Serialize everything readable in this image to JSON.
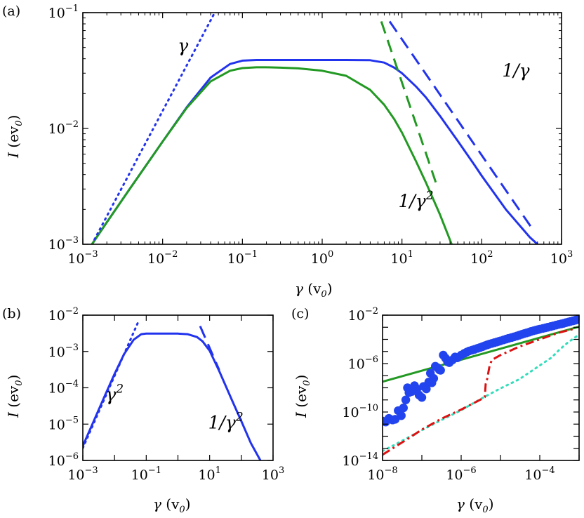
{
  "chart_data": [
    {
      "panel": "(a)",
      "type": "line",
      "xscale": "log",
      "yscale": "log",
      "xlim": [
        0.001,
        1000
      ],
      "ylim": [
        0.001,
        0.1
      ],
      "xticks": [
        {
          "base": "10",
          "exp": "−3"
        },
        {
          "base": "10",
          "exp": "−2"
        },
        {
          "base": "10",
          "exp": "−1"
        },
        {
          "base": "10",
          "exp": "0"
        },
        {
          "base": "10",
          "exp": "1"
        },
        {
          "base": "10",
          "exp": "2"
        },
        {
          "base": "10",
          "exp": "3"
        }
      ],
      "yticks": [
        {
          "base": "10",
          "exp": "−3"
        },
        {
          "base": "10",
          "exp": "−2"
        },
        {
          "base": "10",
          "exp": "−1"
        }
      ],
      "xlabel": {
        "sym": "γ",
        "rest": " (v",
        "sub": "0",
        ")": ")"
      },
      "ylabel": {
        "sym": "I",
        "rest": " (ev",
        "sub": "0"
      },
      "annotations": [
        {
          "text": "γ",
          "sup": "",
          "x": 0.0155,
          "y": 0.046
        },
        {
          "text": "1/γ",
          "sup": "",
          "x": 180,
          "y": 0.028
        },
        {
          "text": "1/γ",
          "sup": "2",
          "x": 9,
          "y": 0.0021
        }
      ],
      "series": [
        {
          "name": "blue solid",
          "color": "#2233ee",
          "dash": "",
          "x": [
            0.0013,
            0.002,
            0.004,
            0.01,
            0.02,
            0.04,
            0.07,
            0.1,
            0.15,
            0.2,
            0.3,
            0.5,
            1,
            2,
            4,
            6,
            8,
            10,
            15,
            20,
            30,
            50,
            80,
            100,
            200,
            400,
            500
          ],
          "y": [
            0.001,
            0.00155,
            0.0031,
            0.0077,
            0.0152,
            0.0275,
            0.036,
            0.0385,
            0.039,
            0.039,
            0.039,
            0.039,
            0.039,
            0.039,
            0.0388,
            0.037,
            0.0335,
            0.03,
            0.023,
            0.0185,
            0.0128,
            0.0078,
            0.0049,
            0.0039,
            0.002,
            0.00115,
            0.001
          ]
        },
        {
          "name": "green solid",
          "color": "#229922",
          "dash": "",
          "x": [
            0.0013,
            0.002,
            0.004,
            0.01,
            0.02,
            0.04,
            0.07,
            0.1,
            0.15,
            0.2,
            0.3,
            0.5,
            1,
            2,
            4,
            6,
            8,
            10,
            15,
            20,
            30,
            42
          ],
          "y": [
            0.001,
            0.00155,
            0.0031,
            0.0077,
            0.015,
            0.0255,
            0.0315,
            0.0332,
            0.0337,
            0.0337,
            0.0335,
            0.033,
            0.0315,
            0.0285,
            0.0215,
            0.016,
            0.012,
            0.0092,
            0.0052,
            0.0034,
            0.0018,
            0.001
          ]
        },
        {
          "name": "blue dotted γ",
          "color": "#2233ee",
          "dash": "dotted",
          "x": [
            0.0014,
            0.045
          ],
          "y": [
            0.0011,
            0.1
          ]
        },
        {
          "name": "blue dashed 1/γ",
          "color": "#2233ee",
          "dash": "dashed",
          "x": [
            7,
            450
          ],
          "y": [
            0.084,
            0.0013
          ]
        },
        {
          "name": "green dashed 1/γ²",
          "color": "#229922",
          "dash": "dashed",
          "x": [
            5.5,
            27
          ],
          "y": [
            0.084,
            0.0033
          ]
        }
      ]
    },
    {
      "panel": "(b)",
      "type": "line",
      "xscale": "log",
      "yscale": "log",
      "xlim": [
        0.001,
        1000
      ],
      "ylim": [
        1e-06,
        0.01
      ],
      "xticks": [
        {
          "base": "10",
          "exp": "−3"
        },
        {
          "base": "10",
          "exp": "−1"
        },
        {
          "base": "10",
          "exp": "1"
        },
        {
          "base": "10",
          "exp": "3"
        }
      ],
      "xtick_values": [
        0.001,
        0.1,
        10,
        1000
      ],
      "yticks": [
        {
          "base": "10",
          "exp": "−6"
        },
        {
          "base": "10",
          "exp": "−5"
        },
        {
          "base": "10",
          "exp": "−4"
        },
        {
          "base": "10",
          "exp": "−3"
        },
        {
          "base": "10",
          "exp": "−2"
        }
      ],
      "xlabel": {
        "sym": "γ",
        "rest": " (v",
        "sub": "0"
      },
      "ylabel": {
        "sym": "I",
        "rest": " (ev",
        "sub": "0"
      },
      "annotations": [
        {
          "text": "γ",
          "sup": "2",
          "x": 0.0052,
          "y": 4.5e-05
        },
        {
          "text": "1/γ",
          "sup": "2",
          "x": 9,
          "y": 7.5e-06
        }
      ],
      "series": [
        {
          "name": "blue solid",
          "color": "#2233ee",
          "dash": "",
          "x": [
            0.001,
            0.002,
            0.005,
            0.01,
            0.02,
            0.04,
            0.07,
            0.1,
            0.2,
            0.5,
            1,
            2,
            4,
            6,
            10,
            20,
            50,
            100,
            200,
            400
          ],
          "y": [
            2.5e-06,
            1e-05,
            6.2e-05,
            0.00024,
            0.00085,
            0.0021,
            0.003,
            0.0031,
            0.0031,
            0.0031,
            0.0031,
            0.003,
            0.0025,
            0.0019,
            0.00105,
            0.00029,
            4.7e-05,
            1.21e-05,
            3e-06,
            1e-06
          ]
        },
        {
          "name": "blue dotted γ²",
          "color": "#2233ee",
          "dash": "dotted",
          "x": [
            0.001,
            0.06
          ],
          "y": [
            2.2e-06,
            0.0075
          ]
        },
        {
          "name": "blue dashed 1/γ²",
          "color": "#2233ee",
          "dash": "dashed",
          "x": [
            5,
            20
          ],
          "y": [
            0.005,
            0.00031
          ]
        }
      ]
    },
    {
      "panel": "(c)",
      "type": "line+scatter",
      "xscale": "log",
      "yscale": "log",
      "xlim": [
        1e-08,
        0.001
      ],
      "ylim": [
        1e-14,
        0.01
      ],
      "xticks": [
        {
          "base": "10",
          "exp": "−8"
        },
        {
          "base": "10",
          "exp": "−6"
        },
        {
          "base": "10",
          "exp": "−4"
        }
      ],
      "xtick_values": [
        1e-08,
        1e-06,
        0.0001
      ],
      "yticks": [
        {
          "base": "10",
          "exp": "−14"
        },
        {
          "base": "10",
          "exp": "−10"
        },
        {
          "base": "10",
          "exp": "−6"
        },
        {
          "base": "10",
          "exp": "−2"
        }
      ],
      "ytick_values": [
        1e-14,
        1e-10,
        1e-06,
        0.01
      ],
      "xlabel": {
        "sym": "γ",
        "rest": " (v",
        "sub": "0"
      },
      "ylabel": {
        "sym": "I",
        "rest": " (ev",
        "sub": "0"
      },
      "annotations": [],
      "series": [
        {
          "name": "green solid",
          "color": "#229922",
          "dash": "",
          "x": [
            1e-08,
            0.001
          ],
          "y": [
            3.2e-08,
            0.0011
          ]
        },
        {
          "name": "cyan dotted",
          "color": "#33ddbb",
          "dash": "dotted",
          "x": [
            1e-08,
            2.5e-08,
            8e-08,
            3e-07,
            1e-06,
            3e-06,
            1e-05,
            3e-05,
            0.0001,
            0.0002,
            0.0003,
            0.0005,
            0.001
          ],
          "y": [
            6e-14,
            2.8e-13,
            2.2e-12,
            2e-11,
            1.4e-10,
            1.1e-09,
            9e-09,
            5e-08,
            7e-07,
            3.2e-06,
            1.2e-05,
            5e-05,
            0.00025
          ]
        },
        {
          "name": "red dash-dot",
          "color": "#dd1111",
          "dash": "dashdot",
          "x": [
            1e-08,
            4e-08,
            1e-07,
            3e-07,
            1e-06,
            3e-06,
            4e-06,
            4.2e-06,
            4.6e-06,
            5.2e-06,
            6e-06,
            1e-05,
            3e-05,
            0.0001,
            0.0003,
            0.0007
          ],
          "y": [
            3e-14,
            5e-13,
            3.5e-12,
            2.6e-11,
            1.6e-10,
            1e-09,
            1.7e-09,
            2e-08,
            5.5e-08,
            5e-07,
            2e-06,
            5e-06,
            2.5e-05,
            0.0001,
            0.00035,
            0.0007
          ]
        },
        {
          "name": "blue dots",
          "color": "#2244ee",
          "marker": "o",
          "x": [
            1e-08,
            1.2e-08,
            1.45e-08,
            1.8e-08,
            2.1e-08,
            2.5e-08,
            3e-08,
            3.4e-08,
            3.9e-08,
            4.3e-08,
            4.7e-08,
            5.6e-08,
            6.5e-08,
            7.5e-08,
            8.5e-08,
            1e-07,
            1.1e-07,
            1.3e-07,
            1.5e-07,
            1.65e-07,
            1.8e-07,
            2e-07,
            2.2e-07,
            2.5e-07,
            2.8e-07,
            3e-07,
            3.5e-07,
            4e-07,
            4.5e-07,
            5e-07,
            6e-07,
            7e-07,
            8e-07,
            1e-06,
            1.2e-06,
            1.4e-06,
            1.6e-06,
            1.9e-06,
            2.2e-06,
            2.6e-06,
            3e-06,
            3.5e-06,
            4e-06,
            4.6e-06,
            5.2e-06,
            6e-06,
            7e-06,
            8e-06,
            9e-06,
            1e-05,
            1.2e-05,
            1.4e-05,
            1.6e-05,
            1.9e-05,
            2.2e-05,
            2.6e-05,
            3e-05,
            3.5e-05,
            4e-05,
            4.6e-05,
            5.3e-05,
            6e-05,
            7e-05,
            8e-05,
            9e-05,
            0.0001,
            0.00012,
            0.00014,
            0.00016,
            0.00019,
            0.00022,
            0.00026,
            0.0003,
            0.00035,
            0.0004,
            0.00046,
            0.00053,
            0.0006,
            0.0007,
            0.0008,
            0.0009,
            0.001
          ],
          "y": [
            1.8e-11,
            1.5e-11,
            3e-11,
            2.2e-11,
            2.5e-11,
            1.3e-10,
            5e-11,
            2.2e-10,
            1e-09,
            1e-08,
            4e-09,
            5e-09,
            1.5e-08,
            8e-09,
            2.5e-09,
            1.6e-09,
            1.3e-08,
            8e-09,
            3e-08,
            1.6e-07,
            2.6e-08,
            6e-08,
            6e-07,
            4.6e-07,
            3e-07,
            2.8e-07,
            5e-06,
            2.8e-06,
            1.4e-06,
            1.2e-06,
            2e-06,
            3.5e-06,
            3e-06,
            5e-06,
            7e-06,
            9e-06,
            1.1e-05,
            1.3e-05,
            1.5e-05,
            1.8e-05,
            2.1e-05,
            2.5e-05,
            3e-05,
            3.5e-05,
            4e-05,
            4.6e-05,
            5.3e-05,
            6e-05,
            6.8e-05,
            7.5e-05,
            9e-05,
            0.000105,
            0.00012,
            0.00014,
            0.00016,
            0.00019,
            0.00022,
            0.00026,
            0.0003,
            0.00034,
            0.00039,
            0.00045,
            0.00052,
            0.00058,
            0.00064,
            0.0007,
            0.0008,
            0.0009,
            0.001,
            0.00115,
            0.0013,
            0.0015,
            0.0017,
            0.0019,
            0.0021,
            0.0024,
            0.0027,
            0.003,
            0.0034,
            0.0038,
            0.0042,
            0.0046
          ]
        }
      ]
    }
  ]
}
